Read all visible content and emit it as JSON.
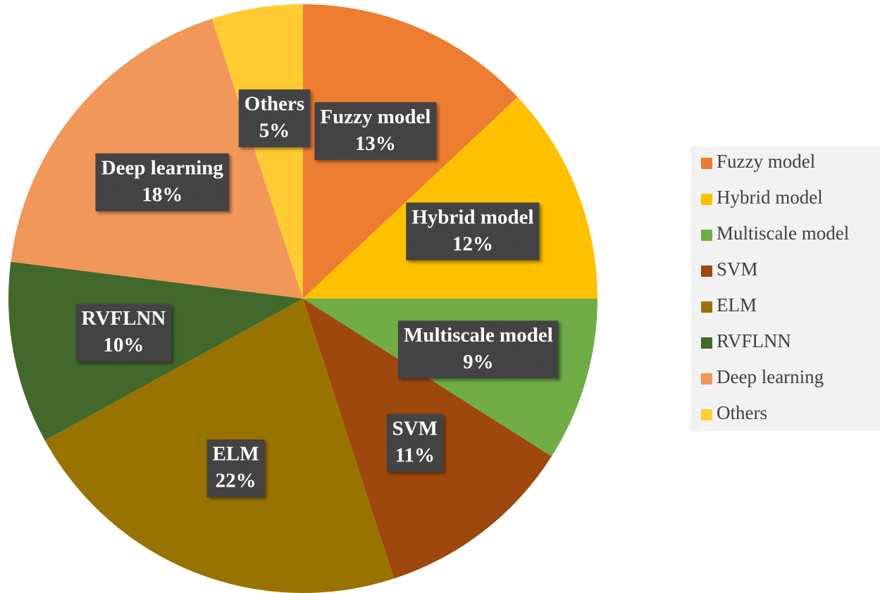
{
  "chart_data": {
    "type": "pie",
    "categories": [
      "Fuzzy model",
      "Hybrid model",
      "Multiscale model",
      "SVM",
      "ELM",
      "RVFLNN",
      "Deep learning",
      "Others"
    ],
    "values": [
      13,
      12,
      9,
      11,
      22,
      10,
      18,
      5
    ],
    "value_labels": [
      "13%",
      "12%",
      "9%",
      "11%",
      "22%",
      "10%",
      "18%",
      "5%"
    ],
    "colors": [
      "#ED7D31",
      "#FFC000",
      "#70AD47",
      "#9E480E",
      "#997300",
      "#43682B",
      "#F1975A",
      "#FFCD33"
    ],
    "legend": "right"
  }
}
